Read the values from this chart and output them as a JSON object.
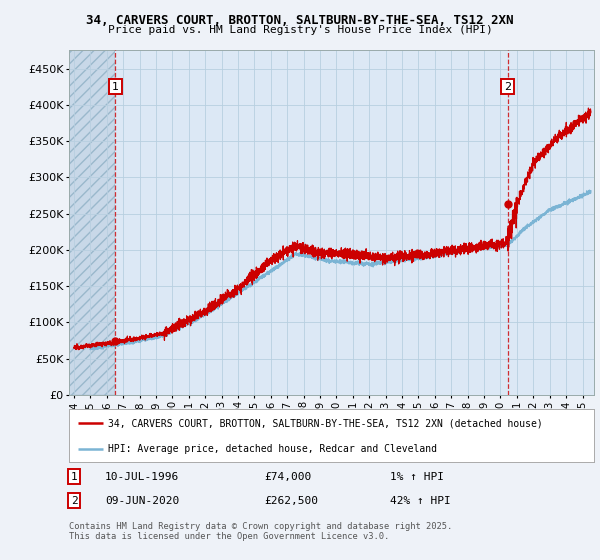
{
  "title_line1": "34, CARVERS COURT, BROTTON, SALTBURN-BY-THE-SEA, TS12 2XN",
  "title_line2": "Price paid vs. HM Land Registry's House Price Index (HPI)",
  "legend_label1": "34, CARVERS COURT, BROTTON, SALTBURN-BY-THE-SEA, TS12 2XN (detached house)",
  "legend_label2": "HPI: Average price, detached house, Redcar and Cleveland",
  "annotation1": {
    "label": "1",
    "date": "10-JUL-1996",
    "price": "£74,000",
    "hpi": "1% ↑ HPI"
  },
  "annotation2": {
    "label": "2",
    "date": "09-JUN-2020",
    "price": "£262,500",
    "hpi": "42% ↑ HPI"
  },
  "copyright": "Contains HM Land Registry data © Crown copyright and database right 2025.\nThis data is licensed under the Open Government Licence v3.0.",
  "line_color": "#cc0000",
  "hpi_color": "#7bb4d4",
  "point1_year": 1996.53,
  "point1_price": 74000,
  "point2_year": 2020.44,
  "point2_price": 262500,
  "ylim": [
    0,
    475000
  ],
  "xlim_start": 1993.7,
  "xlim_end": 2025.7,
  "yticks": [
    0,
    50000,
    100000,
    150000,
    200000,
    250000,
    300000,
    350000,
    400000,
    450000
  ],
  "ytick_labels": [
    "£0",
    "£50K",
    "£100K",
    "£150K",
    "£200K",
    "£250K",
    "£300K",
    "£350K",
    "£400K",
    "£450K"
  ],
  "xticks": [
    1994,
    1995,
    1996,
    1997,
    1998,
    1999,
    2000,
    2001,
    2002,
    2003,
    2004,
    2005,
    2006,
    2007,
    2008,
    2009,
    2010,
    2011,
    2012,
    2013,
    2014,
    2015,
    2016,
    2017,
    2018,
    2019,
    2020,
    2021,
    2022,
    2023,
    2024,
    2025
  ],
  "bg_color": "#eef2f8",
  "plot_bg_color": "#dce8f5",
  "grid_color": "#b8cfe0",
  "hatch_bg": "#c8d8e8"
}
